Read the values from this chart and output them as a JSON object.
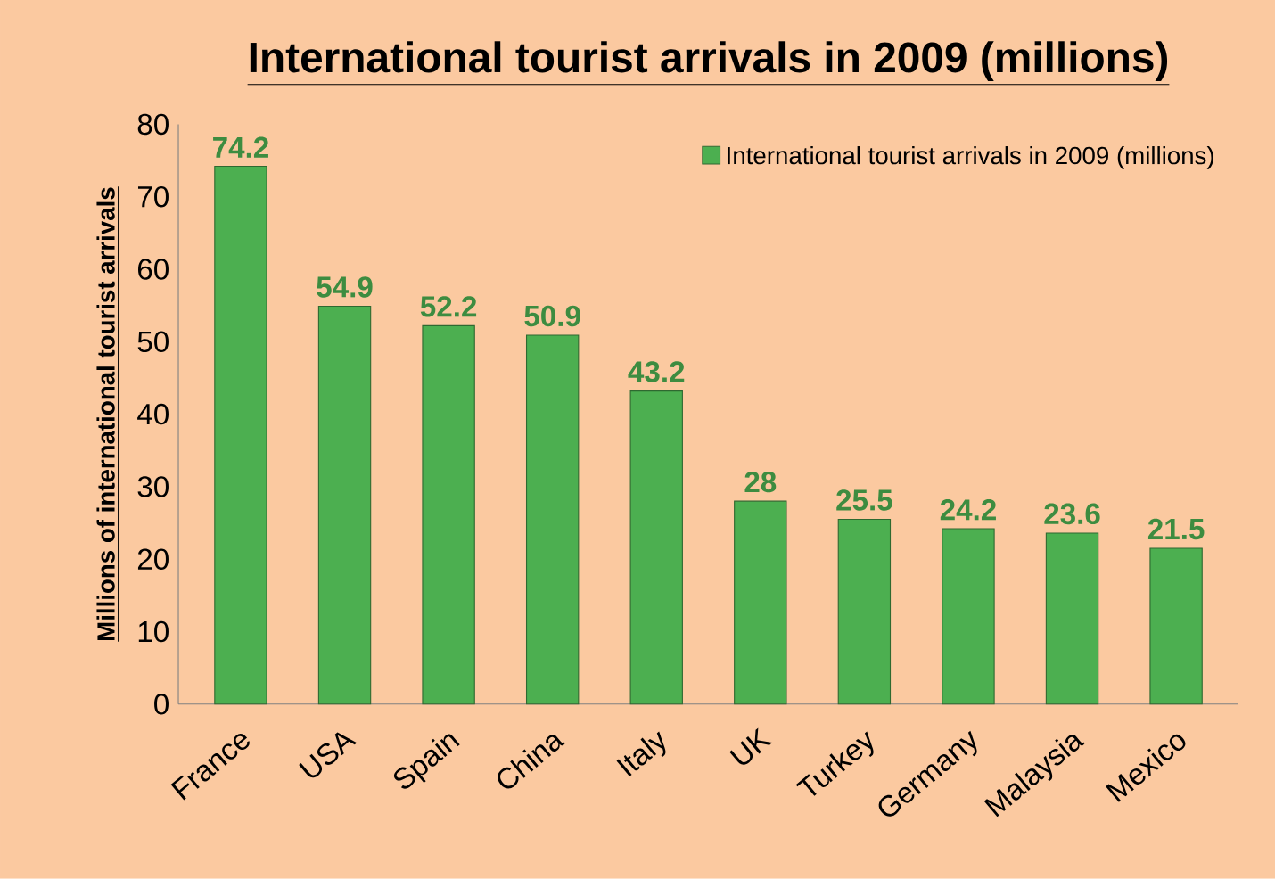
{
  "chart_data": {
    "type": "bar",
    "title": "International tourist arrivals in 2009 (millions)",
    "ylabel": "Millions of international tourist arrivals",
    "categories": [
      "France",
      "USA",
      "Spain",
      "China",
      "Italy",
      "UK",
      "Turkey",
      "Germany",
      "Malaysia",
      "Mexico"
    ],
    "series": [
      {
        "name": "International tourist arrivals in 2009 (millions)",
        "color": "#4caf50",
        "values": [
          74.2,
          54.9,
          52.2,
          50.9,
          43.2,
          28,
          25.5,
          24.2,
          23.6,
          21.5
        ]
      }
    ],
    "ylim": [
      0,
      80
    ],
    "yticks": [
      0,
      10,
      20,
      30,
      40,
      50,
      60,
      70,
      80
    ],
    "data_labels": true,
    "legend": "top right",
    "grid": false
  }
}
